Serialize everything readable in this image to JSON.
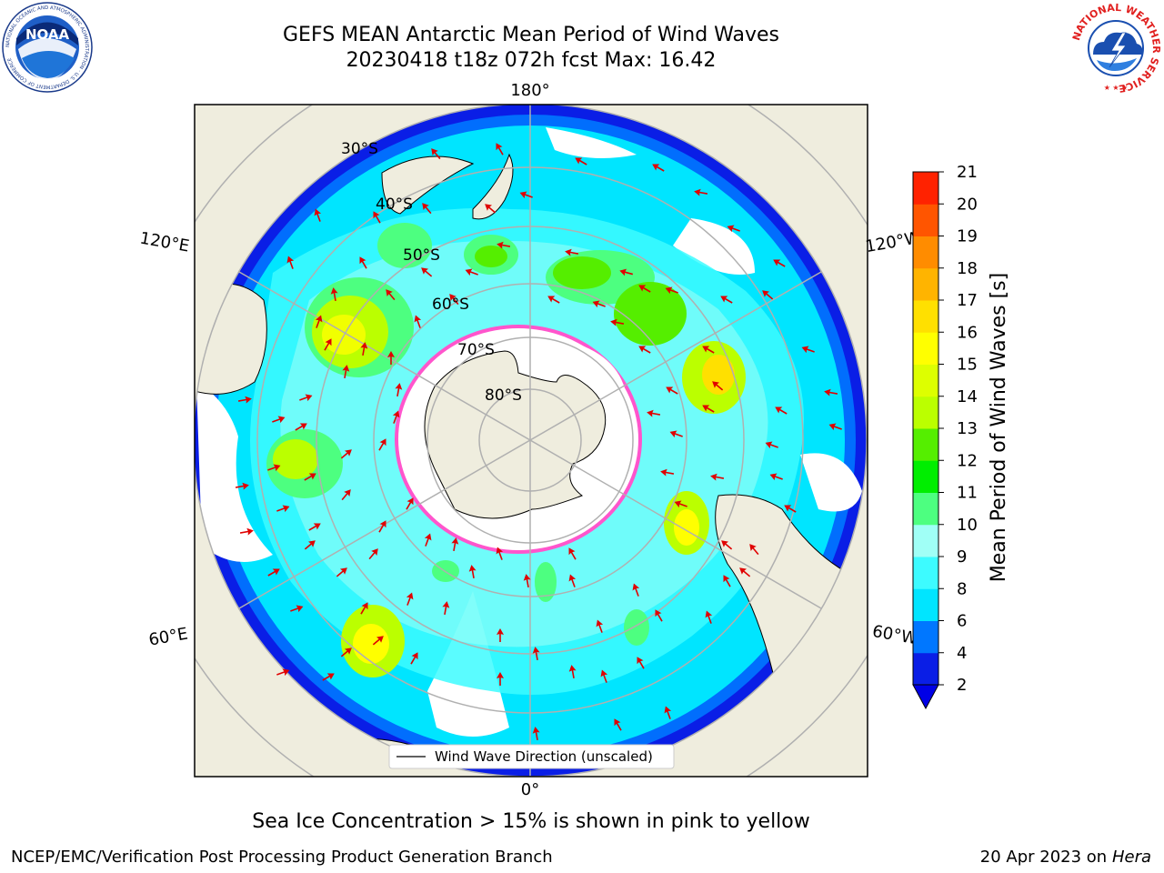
{
  "title": {
    "line1": "GEFS MEAN Antarctic Mean Period of Wind Waves",
    "line2": "20230418 t18z 072h fcst   Max: 16.42"
  },
  "logos": {
    "noaa": {
      "text": "NOAA",
      "ring_text": "NATIONAL OCEANIC AND ATMOSPHERIC ADMINISTRATION · U.S. DEPARTMENT OF COMMERCE",
      "icon": "noaa-logo"
    },
    "nws": {
      "ring_text": "NATIONAL WEATHER SERVICE",
      "icon": "nws-logo"
    }
  },
  "map": {
    "projection": "south-polar-stereographic",
    "longitude_labels": {
      "top": "180°",
      "bottom": "0°",
      "upper_left": "120°E",
      "upper_right": "120°W",
      "lower_left": "60°E",
      "lower_right": "60°W"
    },
    "latitude_labels": [
      "30°S",
      "40°S",
      "50°S",
      "60°S",
      "70°S",
      "80°S"
    ],
    "legend_label": "Wind Wave Direction (unscaled)",
    "colors": {
      "land": "#efedde",
      "ocean_low": "#0a1ee6",
      "arrow": "#e00000",
      "sea_ice_edge": "#ff55cc",
      "grid": "#b0b0b0"
    }
  },
  "colorbar": {
    "label": "Mean Period of Wind Waves [s]",
    "ticks": [
      "2",
      "4",
      "6",
      "8",
      "9",
      "10",
      "11",
      "12",
      "13",
      "14",
      "15",
      "16",
      "17",
      "18",
      "19",
      "20",
      "21"
    ],
    "colors": [
      "#0a1ee6",
      "#0077ff",
      "#00e5ff",
      "#3dfbff",
      "#a0fff6",
      "#4dff80",
      "#00ee00",
      "#55ee00",
      "#bbff00",
      "#ddff00",
      "#ffff00",
      "#ffe000",
      "#ffb400",
      "#ff8c00",
      "#ff5500",
      "#ff2200"
    ],
    "under_color": "#0000e6"
  },
  "sea_ice_note": "Sea Ice Concentration > 15% is shown in pink to yellow",
  "footer": {
    "left": "NCEP/EMC/Verification Post Processing Product Generation Branch",
    "right_prefix": "20 Apr 2023 on ",
    "right_machine": "Hera"
  }
}
